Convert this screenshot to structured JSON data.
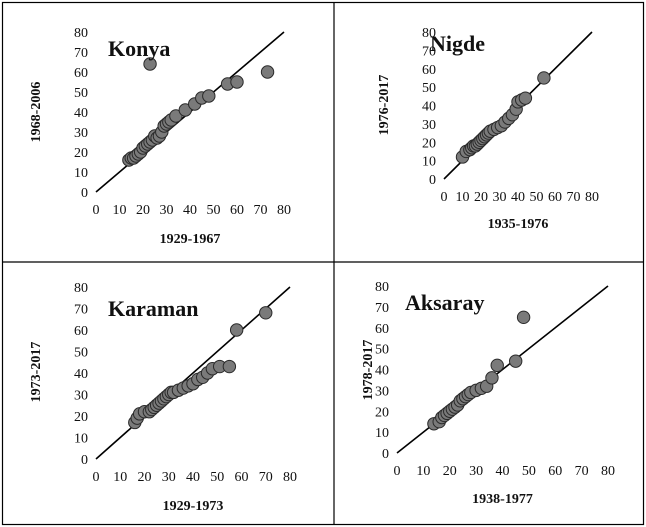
{
  "chart_data": [
    {
      "type": "scatter",
      "title": "Konya",
      "xlabel": "1929-1967",
      "ylabel": "1968-2006",
      "xlim": [
        0,
        80
      ],
      "ylim": [
        0,
        80
      ],
      "xticks": [
        "0",
        "10",
        "20",
        "30",
        "40",
        "50",
        "60",
        "70",
        "80"
      ],
      "yticks": [
        "0",
        "10",
        "20",
        "30",
        "40",
        "50",
        "60",
        "70",
        "80"
      ],
      "diagonal": true,
      "points": [
        [
          14,
          16
        ],
        [
          15,
          17
        ],
        [
          16,
          17
        ],
        [
          17,
          18
        ],
        [
          18,
          19
        ],
        [
          19,
          20
        ],
        [
          20,
          22
        ],
        [
          21,
          23
        ],
        [
          22,
          24
        ],
        [
          23,
          25
        ],
        [
          24,
          26
        ],
        [
          25,
          28
        ],
        [
          26,
          27
        ],
        [
          27,
          28
        ],
        [
          28,
          30
        ],
        [
          29,
          33
        ],
        [
          30,
          34
        ],
        [
          31,
          35
        ],
        [
          32,
          36
        ],
        [
          34,
          38
        ],
        [
          38,
          41
        ],
        [
          42,
          44
        ],
        [
          45,
          47
        ],
        [
          48,
          48
        ],
        [
          56,
          54
        ],
        [
          60,
          55
        ],
        [
          73,
          60
        ],
        [
          23,
          64
        ]
      ]
    },
    {
      "type": "scatter",
      "title": "Nigde",
      "xlabel": "1935-1976",
      "ylabel": "1976-2017",
      "xlim": [
        0,
        80
      ],
      "ylim": [
        0,
        80
      ],
      "xticks": [
        "0",
        "10",
        "20",
        "30",
        "40",
        "50",
        "60",
        "70",
        "80"
      ],
      "yticks": [
        "0",
        "10",
        "20",
        "30",
        "40",
        "50",
        "60",
        "70",
        "80"
      ],
      "diagonal": true,
      "points": [
        [
          10,
          12
        ],
        [
          12,
          15
        ],
        [
          14,
          16
        ],
        [
          15,
          17
        ],
        [
          16,
          18
        ],
        [
          17,
          18
        ],
        [
          18,
          19
        ],
        [
          19,
          20
        ],
        [
          20,
          21
        ],
        [
          21,
          22
        ],
        [
          22,
          23
        ],
        [
          23,
          24
        ],
        [
          24,
          25
        ],
        [
          25,
          26
        ],
        [
          27,
          27
        ],
        [
          29,
          28
        ],
        [
          31,
          29
        ],
        [
          33,
          31
        ],
        [
          35,
          33
        ],
        [
          37,
          35
        ],
        [
          39,
          38
        ],
        [
          40,
          42
        ],
        [
          42,
          43
        ],
        [
          44,
          44
        ],
        [
          54,
          55
        ]
      ]
    },
    {
      "type": "scatter",
      "title": "Karaman",
      "xlabel": "1929-1973",
      "ylabel": "1973-2017",
      "xlim": [
        0,
        80
      ],
      "ylim": [
        0,
        80
      ],
      "xticks": [
        "0",
        "10",
        "20",
        "30",
        "40",
        "50",
        "60",
        "70",
        "80"
      ],
      "yticks": [
        "0",
        "10",
        "20",
        "30",
        "40",
        "50",
        "60",
        "70",
        "80"
      ],
      "diagonal": true,
      "points": [
        [
          16,
          17
        ],
        [
          17,
          19
        ],
        [
          18,
          21
        ],
        [
          20,
          22
        ],
        [
          22,
          22
        ],
        [
          23,
          23
        ],
        [
          24,
          24
        ],
        [
          25,
          25
        ],
        [
          26,
          26
        ],
        [
          27,
          27
        ],
        [
          28,
          28
        ],
        [
          29,
          29
        ],
        [
          30,
          30
        ],
        [
          31,
          31
        ],
        [
          32,
          31
        ],
        [
          34,
          32
        ],
        [
          36,
          33
        ],
        [
          38,
          34
        ],
        [
          40,
          35
        ],
        [
          42,
          37
        ],
        [
          44,
          38
        ],
        [
          46,
          40
        ],
        [
          48,
          42
        ],
        [
          51,
          43
        ],
        [
          55,
          43
        ],
        [
          58,
          60
        ],
        [
          70,
          68
        ]
      ]
    },
    {
      "type": "scatter",
      "title": "Aksaray",
      "xlabel": "1938-1977",
      "ylabel": "1978-2017",
      "xlim": [
        0,
        80
      ],
      "ylim": [
        0,
        80
      ],
      "xticks": [
        "0",
        "10",
        "20",
        "30",
        "40",
        "50",
        "60",
        "70",
        "80"
      ],
      "yticks": [
        "0",
        "10",
        "20",
        "30",
        "40",
        "50",
        "60",
        "70",
        "80"
      ],
      "diagonal": true,
      "points": [
        [
          14,
          14
        ],
        [
          16,
          15
        ],
        [
          17,
          17
        ],
        [
          18,
          18
        ],
        [
          19,
          19
        ],
        [
          20,
          20
        ],
        [
          21,
          21
        ],
        [
          22,
          22
        ],
        [
          23,
          23
        ],
        [
          24,
          25
        ],
        [
          25,
          26
        ],
        [
          26,
          27
        ],
        [
          27,
          28
        ],
        [
          28,
          29
        ],
        [
          30,
          30
        ],
        [
          32,
          31
        ],
        [
          34,
          32
        ],
        [
          36,
          36
        ],
        [
          38,
          42
        ],
        [
          45,
          44
        ],
        [
          48,
          65
        ]
      ]
    }
  ],
  "style": {
    "point_fill": "#7a7a7a",
    "point_stroke": "#2a2a2a",
    "line": "#000000",
    "border": "#000000"
  }
}
